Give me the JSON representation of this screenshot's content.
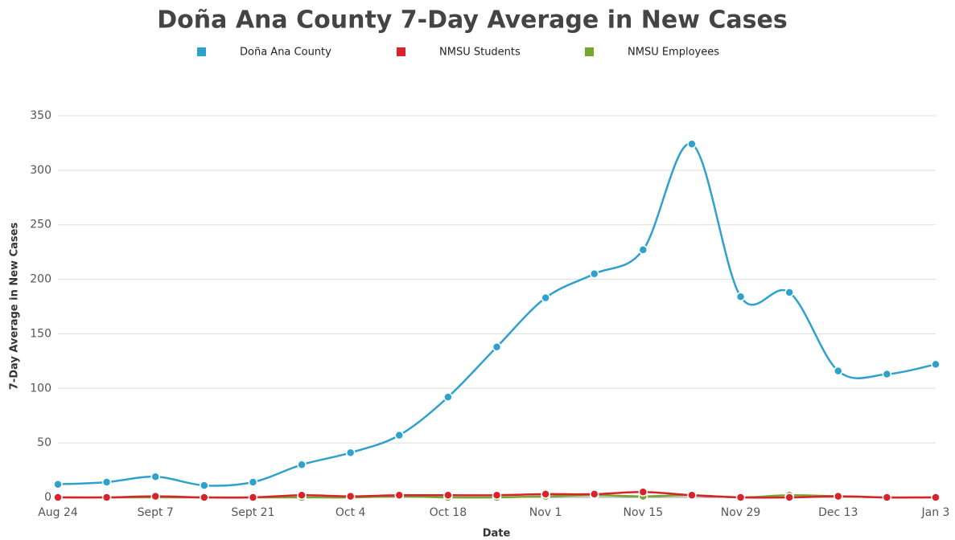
{
  "chart_data": {
    "type": "line",
    "title": "Doña Ana County 7-Day Average in New Cases",
    "xlabel": "Date",
    "ylabel": "7-Day Average in New Cases",
    "categories": [
      "Aug 24",
      null,
      "Sept 7",
      null,
      "Sept 21",
      null,
      "Oct 4",
      null,
      "Oct 18",
      null,
      "Nov 1",
      null,
      "Nov 15",
      null,
      "Nov 29",
      null,
      "Dec 13",
      null,
      "Jan 3"
    ],
    "series": [
      {
        "name": "Doña Ana County",
        "color": "#2ea2cc",
        "values": [
          12,
          14,
          19,
          11,
          14,
          30,
          41,
          57,
          92,
          138,
          183,
          205,
          227,
          324,
          184,
          188,
          116,
          113,
          122
        ]
      },
      {
        "name": "NMSU Students",
        "color": "#d9232a",
        "values": [
          0,
          0,
          1,
          0,
          0,
          2,
          1,
          2,
          2,
          2,
          3,
          3,
          5,
          2,
          0,
          0,
          1,
          0,
          0
        ]
      },
      {
        "name": "NMSU Employees",
        "color": "#76a82f",
        "values": [
          0,
          0,
          0,
          0,
          0,
          0,
          0,
          1,
          0,
          0,
          1,
          2,
          1,
          2,
          0,
          2,
          1,
          0,
          0
        ]
      }
    ],
    "ylim": [
      0,
      350
    ],
    "yticks": [
      0,
      50,
      100,
      150,
      200,
      250,
      300,
      350
    ],
    "grid": true
  }
}
